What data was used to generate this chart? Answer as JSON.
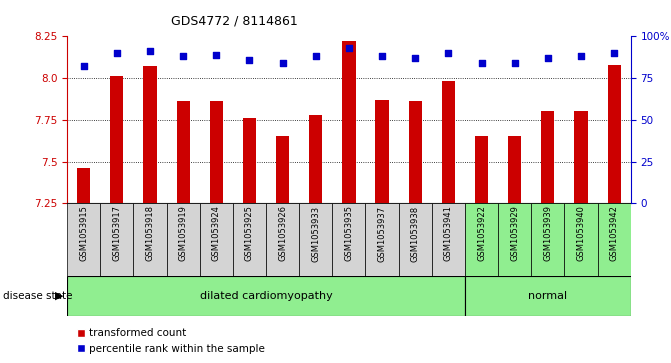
{
  "title": "GDS4772 / 8114861",
  "samples": [
    "GSM1053915",
    "GSM1053917",
    "GSM1053918",
    "GSM1053919",
    "GSM1053924",
    "GSM1053925",
    "GSM1053926",
    "GSM1053933",
    "GSM1053935",
    "GSM1053937",
    "GSM1053938",
    "GSM1053941",
    "GSM1053922",
    "GSM1053929",
    "GSM1053939",
    "GSM1053940",
    "GSM1053942"
  ],
  "bar_values": [
    7.46,
    8.01,
    8.07,
    7.86,
    7.86,
    7.76,
    7.65,
    7.78,
    8.22,
    7.87,
    7.86,
    7.98,
    7.65,
    7.65,
    7.8,
    7.8,
    8.08
  ],
  "percentile_values": [
    82,
    90,
    91,
    88,
    89,
    86,
    84,
    88,
    93,
    88,
    87,
    90,
    84,
    84,
    87,
    88,
    90
  ],
  "disease_labels": [
    "dilated cardiomyopathy",
    "normal"
  ],
  "disease_groups": [
    12,
    5
  ],
  "ylim_left": [
    7.25,
    8.25
  ],
  "ylim_right": [
    0,
    100
  ],
  "yticks_left": [
    7.25,
    7.5,
    7.75,
    8.0,
    8.25
  ],
  "yticks_right": [
    0,
    25,
    50,
    75,
    100
  ],
  "bar_color": "#cc0000",
  "dot_color": "#0000cc",
  "bg_color_dilated": "#d4d4d4",
  "bg_color_normal": "#90ee90",
  "legend_label_bar": "transformed count",
  "legend_label_dot": "percentile rank within the sample",
  "grid_lines": [
    7.5,
    7.75,
    8.0
  ],
  "disease_state_label": "disease state"
}
